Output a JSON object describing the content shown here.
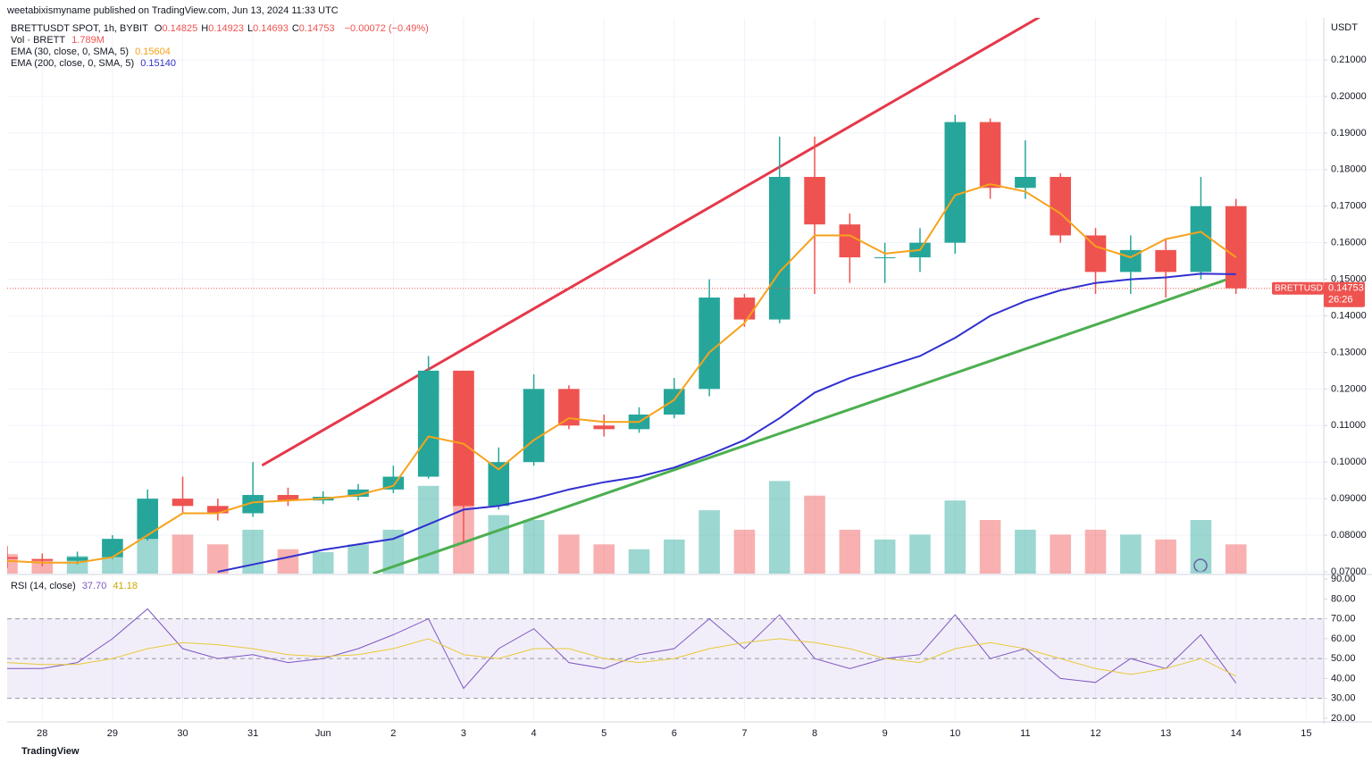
{
  "header": {
    "published": "weetabixismyname published on TradingView.com, Jun 13, 2024 11:33 UTC"
  },
  "footer": {
    "brand": "TradingView"
  },
  "chart_data": [
    {
      "type": "candlestick",
      "legend": {
        "symbol": "BRETTUSDT SPOT, 1h, BYBIT",
        "ohlc": [
          {
            "key": "O",
            "value": "0.14825"
          },
          {
            "key": "H",
            "value": "0.14923"
          },
          {
            "key": "L",
            "value": "0.14693"
          },
          {
            "key": "C",
            "value": "0.14753"
          }
        ],
        "change": "−0.00072 (−0.49%)",
        "volume": {
          "name": "Vol · BRETT",
          "value": "1.789M"
        },
        "ema30": {
          "name": "EMA (30, close, 0, SMA, 5)",
          "value": "0.15604"
        },
        "ema200": {
          "name": "EMA (200, close, 0, SMA, 5)",
          "value": "0.15140"
        }
      },
      "axis_label": "USDT",
      "price_tag": {
        "symbol": "BRETTUSDT",
        "price": "0.14753",
        "countdown": "26:26"
      },
      "up_color": "#26a69a",
      "down_color": "#ef5350",
      "x": [
        -0.5,
        0,
        0.5,
        1,
        1.5,
        2,
        2.5,
        3,
        3.5,
        4,
        4.5,
        5,
        5.5,
        6,
        6.5,
        7,
        7.5,
        8,
        8.5,
        9,
        9.5,
        10,
        10.5,
        11,
        11.5,
        12,
        12.5,
        13,
        13.5,
        14,
        14.5,
        15,
        15.5,
        16,
        16.5,
        17
      ],
      "open": [
        0.074,
        0.0735,
        0.073,
        0.074,
        0.079,
        0.09,
        0.088,
        0.086,
        0.091,
        0.0895,
        0.0905,
        0.0925,
        0.096,
        0.125,
        0.088,
        0.1,
        0.12,
        0.11,
        0.109,
        0.113,
        0.12,
        0.145,
        0.139,
        0.178,
        0.165,
        0.156,
        0.156,
        0.16,
        0.193,
        0.175,
        0.178,
        0.162,
        0.152,
        0.158,
        0.152,
        0.17
      ],
      "high": [
        0.077,
        0.075,
        0.0755,
        0.08,
        0.0925,
        0.096,
        0.09,
        0.1,
        0.093,
        0.092,
        0.094,
        0.099,
        0.129,
        0.125,
        0.104,
        0.124,
        0.121,
        0.113,
        0.115,
        0.123,
        0.15,
        0.146,
        0.189,
        0.189,
        0.168,
        0.16,
        0.164,
        0.195,
        0.194,
        0.188,
        0.179,
        0.164,
        0.162,
        0.161,
        0.178,
        0.172
      ],
      "low": [
        0.071,
        0.0715,
        0.072,
        0.0735,
        0.0785,
        0.086,
        0.084,
        0.085,
        0.088,
        0.0885,
        0.0895,
        0.0915,
        0.0955,
        0.078,
        0.087,
        0.099,
        0.109,
        0.107,
        0.108,
        0.112,
        0.118,
        0.137,
        0.138,
        0.146,
        0.149,
        0.149,
        0.152,
        0.157,
        0.172,
        0.172,
        0.16,
        0.146,
        0.146,
        0.145,
        0.15,
        0.146
      ],
      "close": [
        0.0735,
        0.073,
        0.074,
        0.079,
        0.09,
        0.088,
        0.086,
        0.091,
        0.0895,
        0.0905,
        0.0925,
        0.096,
        0.125,
        0.088,
        0.1,
        0.12,
        0.11,
        0.109,
        0.113,
        0.12,
        0.145,
        0.139,
        0.178,
        0.165,
        0.156,
        0.156,
        0.16,
        0.193,
        0.175,
        0.178,
        0.162,
        0.152,
        0.158,
        0.152,
        0.17,
        0.14753
      ],
      "volume": [
        20000000,
        15000000,
        18000000,
        25000000,
        60000000,
        40000000,
        30000000,
        45000000,
        25000000,
        22000000,
        30000000,
        45000000,
        90000000,
        110000000,
        60000000,
        55000000,
        40000000,
        30000000,
        25000000,
        35000000,
        65000000,
        45000000,
        95000000,
        80000000,
        45000000,
        35000000,
        40000000,
        75000000,
        55000000,
        45000000,
        40000000,
        45000000,
        40000000,
        35000000,
        55000000,
        30000000
      ],
      "series": [
        {
          "color": "#f7a21b",
          "values": [
            0.073,
            0.0725,
            0.0725,
            0.074,
            0.08,
            0.086,
            0.086,
            0.089,
            0.0895,
            0.09,
            0.091,
            0.0935,
            0.107,
            0.105,
            0.098,
            0.106,
            0.112,
            0.111,
            0.111,
            0.117,
            0.13,
            0.138,
            0.152,
            0.162,
            0.162,
            0.157,
            0.158,
            0.173,
            0.176,
            0.174,
            0.168,
            0.159,
            0.156,
            0.161,
            0.163,
            0.15604
          ]
        },
        {
          "color": "#3030d0",
          "values": [
            null,
            null,
            null,
            null,
            null,
            null,
            0.07,
            0.072,
            0.074,
            0.076,
            0.0775,
            0.079,
            0.083,
            0.087,
            0.088,
            0.09,
            0.0925,
            0.0945,
            0.096,
            0.0985,
            0.102,
            0.106,
            0.112,
            0.119,
            0.123,
            0.126,
            0.129,
            0.134,
            0.14,
            0.144,
            0.147,
            0.149,
            0.15,
            0.1505,
            0.1515,
            0.1514
          ]
        }
      ],
      "trendlines": [
        {
          "color": "#e5384a",
          "x": [
            3.13,
            14.2
          ],
          "y": [
            0.0991,
            0.2217
          ]
        },
        {
          "color": "#4caf50",
          "x": [
            4.71,
            16.94
          ],
          "y": [
            0.0695,
            0.1504
          ]
        }
      ],
      "xlim": [
        -0.5,
        18.25
      ],
      "xticks": [
        {
          "value": 0,
          "label": "28"
        },
        {
          "value": 1,
          "label": "29"
        },
        {
          "value": 2,
          "label": "30"
        },
        {
          "value": 3,
          "label": "31"
        },
        {
          "value": 4,
          "label": "Jun"
        },
        {
          "value": 5,
          "label": "2"
        },
        {
          "value": 6,
          "label": "3"
        },
        {
          "value": 7,
          "label": "4"
        },
        {
          "value": 8,
          "label": "5"
        },
        {
          "value": 9,
          "label": "6"
        },
        {
          "value": 10,
          "label": "7"
        },
        {
          "value": 11,
          "label": "8"
        },
        {
          "value": 12,
          "label": "9"
        },
        {
          "value": 13,
          "label": "10"
        },
        {
          "value": 14,
          "label": "11"
        },
        {
          "value": 15,
          "label": "12"
        },
        {
          "value": 16,
          "label": "13"
        },
        {
          "value": 17,
          "label": "14"
        },
        {
          "value": 18,
          "label": "15"
        }
      ],
      "ylim": [
        0.0695,
        0.2215
      ],
      "yticks": [
        {
          "value": 0.07,
          "label": "0.07000"
        },
        {
          "value": 0.08,
          "label": "0.08000"
        },
        {
          "value": 0.09,
          "label": "0.09000"
        },
        {
          "value": 0.1,
          "label": "0.10000"
        },
        {
          "value": 0.11,
          "label": "0.11000"
        },
        {
          "value": 0.12,
          "label": "0.12000"
        },
        {
          "value": 0.13,
          "label": "0.13000"
        },
        {
          "value": 0.14,
          "label": "0.14000"
        },
        {
          "value": 0.15,
          "label": "0.15000"
        },
        {
          "value": 0.16,
          "label": "0.16000"
        },
        {
          "value": 0.17,
          "label": "0.17000"
        },
        {
          "value": 0.18,
          "label": "0.18000"
        },
        {
          "value": 0.19,
          "label": "0.19000"
        },
        {
          "value": 0.2,
          "label": "0.20000"
        },
        {
          "value": 0.21,
          "label": "0.21000"
        }
      ],
      "grid": true
    },
    {
      "type": "line",
      "title": "RSI (14, close)",
      "legend_values": [
        "37.70",
        "41.18"
      ],
      "x": [
        -0.5,
        0,
        0.5,
        1,
        1.5,
        2,
        2.5,
        3,
        3.5,
        4,
        4.5,
        5,
        5.5,
        6,
        6.5,
        7,
        7.5,
        8,
        8.5,
        9,
        9.5,
        10,
        10.5,
        11,
        11.5,
        12,
        12.5,
        13,
        13.5,
        14,
        14.5,
        15,
        15.5,
        16,
        16.5,
        17
      ],
      "series": [
        {
          "color": "#7e57c2",
          "values": [
            45,
            45,
            48,
            60,
            75,
            55,
            50,
            52,
            48,
            50,
            55,
            62,
            70,
            35,
            55,
            65,
            48,
            45,
            52,
            55,
            70,
            55,
            72,
            50,
            45,
            50,
            52,
            72,
            50,
            55,
            40,
            38,
            50,
            45,
            62,
            37.7
          ]
        },
        {
          "color": "#e8c93a",
          "values": [
            48,
            47,
            47,
            50,
            55,
            58,
            57,
            55,
            52,
            51,
            52,
            55,
            60,
            52,
            50,
            55,
            55,
            50,
            48,
            50,
            55,
            58,
            60,
            58,
            55,
            50,
            48,
            55,
            58,
            55,
            50,
            45,
            42,
            45,
            50,
            41.18
          ]
        }
      ],
      "band": [
        30,
        70
      ],
      "levels": [
        70,
        50,
        30
      ],
      "ylim": [
        19.5,
        91.4
      ],
      "yticks": [
        {
          "value": 20,
          "label": "20.00"
        },
        {
          "value": 30,
          "label": "30.00"
        },
        {
          "value": 40,
          "label": "40.00"
        },
        {
          "value": 50,
          "label": "50.00"
        },
        {
          "value": 60,
          "label": "60.00"
        },
        {
          "value": 70,
          "label": "70.00"
        },
        {
          "value": 80,
          "label": "80.00"
        },
        {
          "value": 90,
          "label": "90.00"
        }
      ]
    }
  ]
}
